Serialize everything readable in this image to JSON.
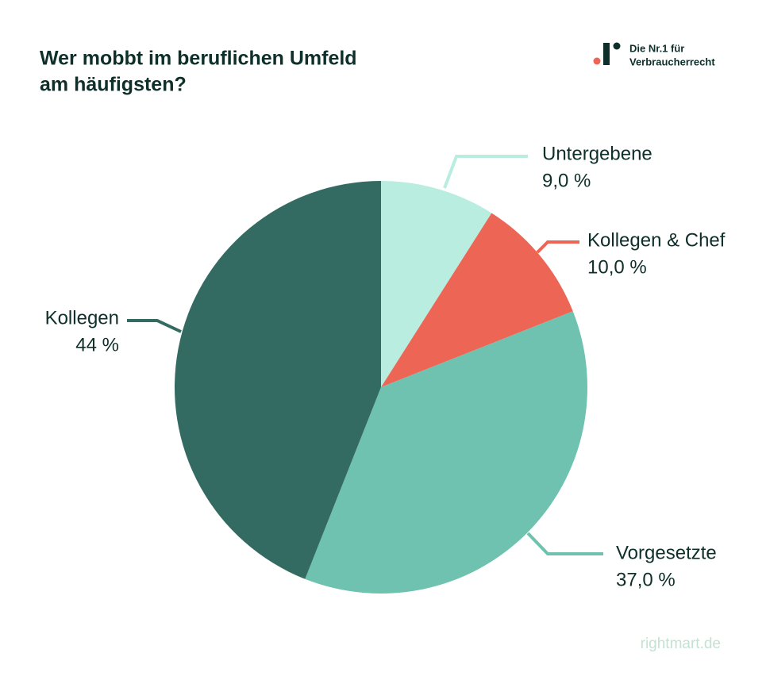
{
  "chart_data": {
    "type": "pie",
    "title": [
      "Wer mobbt im beruflichen Umfeld",
      "am häufigsten?"
    ],
    "categories": [
      "Untergebene",
      "Kollegen & Chef",
      "Vorgesetzte",
      "Kollegen"
    ],
    "values": [
      9,
      10,
      37,
      44
    ],
    "value_labels": [
      "9,0 %",
      "10,0 %",
      "37,0 %",
      "44 %"
    ],
    "colors": [
      "#b8ede0",
      "#ec6555",
      "#6fc2af",
      "#336b62"
    ]
  },
  "logo": {
    "lines": [
      "Die Nr.1 für",
      "Verbraucherrecht"
    ]
  },
  "footer": "rightmart.de"
}
